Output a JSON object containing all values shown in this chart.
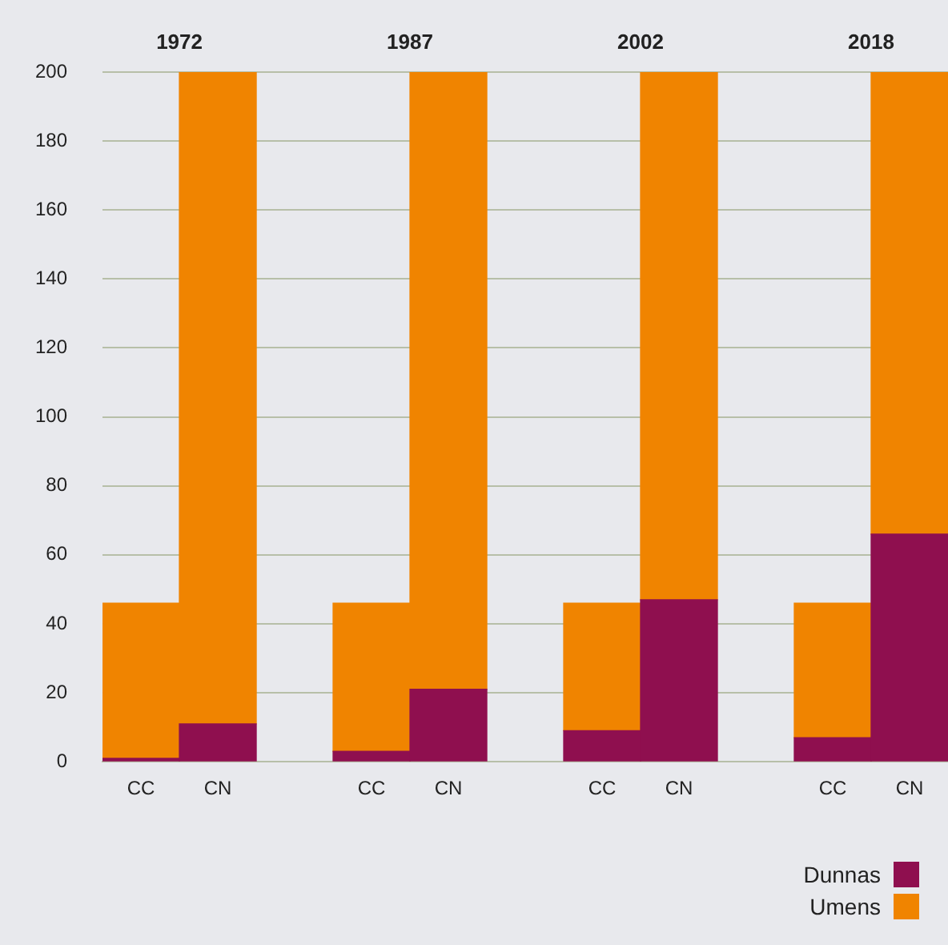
{
  "chart_data": {
    "type": "bar",
    "stacked": true,
    "categories": [
      "CC",
      "CN",
      null,
      "CC",
      "CN",
      null,
      "CC",
      "CN",
      null,
      "CC",
      "CN"
    ],
    "series": [
      {
        "name": "Dunnas",
        "color": "#8f0f4f",
        "values": [
          1,
          11,
          null,
          3,
          21,
          null,
          9,
          47,
          null,
          7,
          66
        ]
      },
      {
        "name": "Umens",
        "color": "#f08400",
        "values": [
          45,
          189,
          null,
          43,
          179,
          null,
          37,
          153,
          null,
          39,
          134
        ]
      }
    ],
    "annotations": [
      "1972",
      "1987",
      "2002",
      "2018"
    ],
    "ylim": [
      0,
      200
    ],
    "yticks": [
      0,
      20,
      40,
      60,
      80,
      100,
      120,
      140,
      160,
      180,
      200
    ],
    "grid": "y",
    "legend": "bottom right"
  }
}
